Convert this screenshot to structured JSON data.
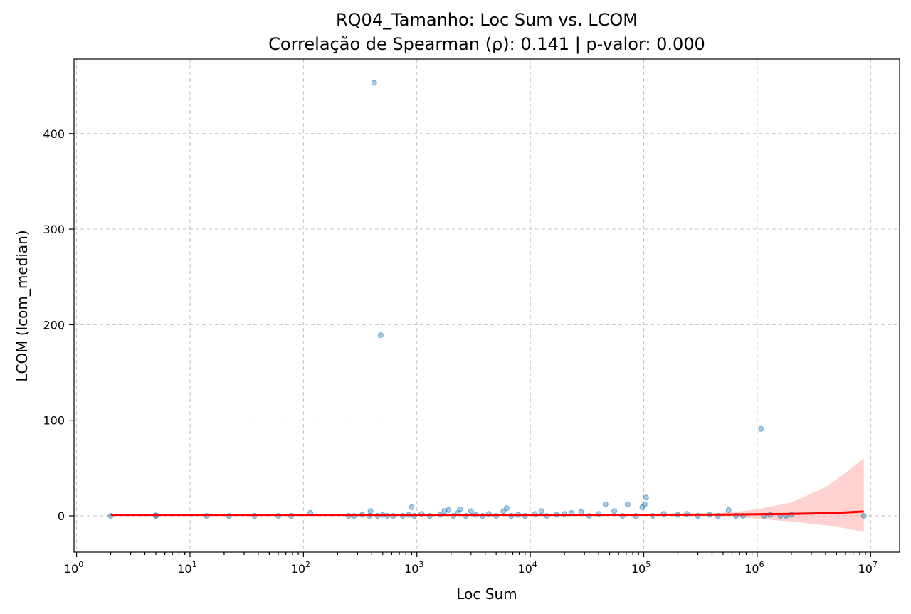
{
  "chart_data": {
    "type": "scatter",
    "title": "RQ04_Tamanho: Loc Sum vs. LCOM",
    "subtitle": "Correlação de Spearman (ρ): 0.141 | p-valor: 0.000",
    "xlabel": "Loc Sum",
    "ylabel": "LCOM (lcom_median)",
    "x_scale": "log",
    "xlim": [
      0.95,
      18000000
    ],
    "ylim": [
      -38,
      478
    ],
    "grid": true,
    "x_ticks": [
      {
        "base": "10",
        "exp": "0",
        "value": 1
      },
      {
        "base": "10",
        "exp": "1",
        "value": 10
      },
      {
        "base": "10",
        "exp": "2",
        "value": 100
      },
      {
        "base": "10",
        "exp": "3",
        "value": 1000
      },
      {
        "base": "10",
        "exp": "4",
        "value": 10000
      },
      {
        "base": "10",
        "exp": "5",
        "value": 100000
      },
      {
        "base": "10",
        "exp": "6",
        "value": 1000000
      },
      {
        "base": "10",
        "exp": "7",
        "value": 10000000
      }
    ],
    "y_ticks": [
      "0",
      "100",
      "200",
      "300",
      "400"
    ],
    "y_tick_values": [
      0,
      100,
      200,
      300,
      400
    ],
    "scatter_color": "#1f77b4",
    "regression_color": "#ff0000",
    "ci_color": "#ffb3b3",
    "points": [
      {
        "x": 2,
        "y": 0
      },
      {
        "x": 5,
        "y": 0
      },
      {
        "x": 5,
        "y": 0.5
      },
      {
        "x": 14,
        "y": 0
      },
      {
        "x": 22,
        "y": 0
      },
      {
        "x": 37,
        "y": 0
      },
      {
        "x": 60,
        "y": 0
      },
      {
        "x": 78,
        "y": 0
      },
      {
        "x": 115,
        "y": 3
      },
      {
        "x": 250,
        "y": 0
      },
      {
        "x": 280,
        "y": 0
      },
      {
        "x": 330,
        "y": 1
      },
      {
        "x": 380,
        "y": 0
      },
      {
        "x": 390,
        "y": 5
      },
      {
        "x": 420,
        "y": 453
      },
      {
        "x": 450,
        "y": 0
      },
      {
        "x": 480,
        "y": 189
      },
      {
        "x": 500,
        "y": 1
      },
      {
        "x": 550,
        "y": 0
      },
      {
        "x": 620,
        "y": 0
      },
      {
        "x": 750,
        "y": 0
      },
      {
        "x": 850,
        "y": 1
      },
      {
        "x": 900,
        "y": 9
      },
      {
        "x": 950,
        "y": 0
      },
      {
        "x": 1100,
        "y": 2
      },
      {
        "x": 1300,
        "y": 0
      },
      {
        "x": 1600,
        "y": 1
      },
      {
        "x": 1750,
        "y": 5
      },
      {
        "x": 1900,
        "y": 6
      },
      {
        "x": 2100,
        "y": 0
      },
      {
        "x": 2300,
        "y": 3
      },
      {
        "x": 2400,
        "y": 7
      },
      {
        "x": 2700,
        "y": 0
      },
      {
        "x": 3000,
        "y": 5
      },
      {
        "x": 3300,
        "y": 1
      },
      {
        "x": 3800,
        "y": 0
      },
      {
        "x": 4300,
        "y": 2
      },
      {
        "x": 5000,
        "y": 0
      },
      {
        "x": 5800,
        "y": 5
      },
      {
        "x": 6200,
        "y": 8
      },
      {
        "x": 6800,
        "y": 0
      },
      {
        "x": 7800,
        "y": 1
      },
      {
        "x": 9000,
        "y": 0
      },
      {
        "x": 11000,
        "y": 2
      },
      {
        "x": 12500,
        "y": 5
      },
      {
        "x": 14000,
        "y": 0
      },
      {
        "x": 17000,
        "y": 1
      },
      {
        "x": 20000,
        "y": 2
      },
      {
        "x": 23000,
        "y": 3
      },
      {
        "x": 28000,
        "y": 4
      },
      {
        "x": 33000,
        "y": 0
      },
      {
        "x": 40000,
        "y": 2
      },
      {
        "x": 46000,
        "y": 12
      },
      {
        "x": 55000,
        "y": 5
      },
      {
        "x": 65000,
        "y": 0
      },
      {
        "x": 72000,
        "y": 12
      },
      {
        "x": 85000,
        "y": 0
      },
      {
        "x": 97000,
        "y": 9
      },
      {
        "x": 102000,
        "y": 12
      },
      {
        "x": 105000,
        "y": 19
      },
      {
        "x": 120000,
        "y": 0
      },
      {
        "x": 150000,
        "y": 2
      },
      {
        "x": 200000,
        "y": 1
      },
      {
        "x": 240000,
        "y": 2
      },
      {
        "x": 300000,
        "y": 0
      },
      {
        "x": 380000,
        "y": 1
      },
      {
        "x": 450000,
        "y": 0
      },
      {
        "x": 560000,
        "y": 6
      },
      {
        "x": 650000,
        "y": 0
      },
      {
        "x": 750000,
        "y": 0
      },
      {
        "x": 1080000,
        "y": 91
      },
      {
        "x": 1150000,
        "y": 0
      },
      {
        "x": 1300000,
        "y": 1
      },
      {
        "x": 1600000,
        "y": 0
      },
      {
        "x": 1800000,
        "y": 0
      },
      {
        "x": 2000000,
        "y": 1
      },
      {
        "x": 8700000,
        "y": 0
      }
    ],
    "regression": [
      {
        "x": 2,
        "y": 1.0
      },
      {
        "x": 100,
        "y": 1.0
      },
      {
        "x": 10000,
        "y": 1.0
      },
      {
        "x": 100000,
        "y": 1.1
      },
      {
        "x": 500000,
        "y": 1.3
      },
      {
        "x": 1000000,
        "y": 1.6
      },
      {
        "x": 2000000,
        "y": 2.0
      },
      {
        "x": 4000000,
        "y": 2.8
      },
      {
        "x": 6000000,
        "y": 3.5
      },
      {
        "x": 8700000,
        "y": 4.5
      }
    ],
    "ci_band": [
      {
        "x": 400000,
        "lo": 0.0,
        "hi": 2.5
      },
      {
        "x": 700000,
        "lo": -1.5,
        "hi": 4.5
      },
      {
        "x": 1000000,
        "lo": -3.0,
        "hi": 7.0
      },
      {
        "x": 2000000,
        "lo": -6.0,
        "hi": 14.0
      },
      {
        "x": 4000000,
        "lo": -10.0,
        "hi": 30.0
      },
      {
        "x": 6000000,
        "lo": -13.0,
        "hi": 45.0
      },
      {
        "x": 8700000,
        "lo": -17.0,
        "hi": 60.0
      }
    ]
  }
}
